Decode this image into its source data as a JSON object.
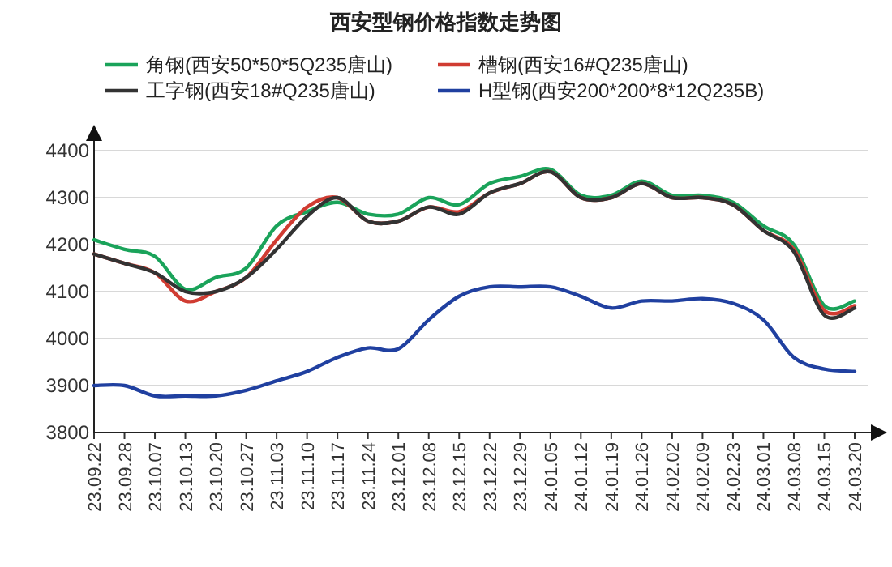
{
  "chart_data": {
    "type": "line",
    "title": "西安型钢价格指数走势图",
    "legend": "top",
    "grid": "y",
    "ylim": [
      3800,
      4400
    ],
    "yticks": [
      3800,
      3900,
      4000,
      4100,
      4200,
      4300,
      4400
    ],
    "categories": [
      "23.09.22",
      "23.09.28",
      "23.10.07",
      "23.10.13",
      "23.10.20",
      "23.10.27",
      "23.11.03",
      "23.11.10",
      "23.11.17",
      "23.11.24",
      "23.12.01",
      "23.12.08",
      "23.12.15",
      "23.12.22",
      "23.12.29",
      "24.01.05",
      "24.01.12",
      "24.01.19",
      "24.01.26",
      "24.02.02",
      "24.02.09",
      "24.02.23",
      "24.03.01",
      "24.03.08",
      "24.03.15",
      "24.03.20"
    ],
    "series": [
      {
        "name": "角钢(西安50*50*5Q235唐山)",
        "color": "#1aa35a",
        "values": [
          4210,
          4190,
          4175,
          4105,
          4130,
          4150,
          4240,
          4270,
          4290,
          4265,
          4265,
          4300,
          4285,
          4330,
          4345,
          4360,
          4305,
          4305,
          4335,
          4305,
          4305,
          4290,
          4240,
          4200,
          4070,
          4080
        ]
      },
      {
        "name": "槽钢(西安16#Q235唐山)",
        "color": "#d03c32",
        "values": [
          4180,
          4160,
          4140,
          4080,
          4100,
          4130,
          4210,
          4280,
          4300,
          4250,
          4250,
          4280,
          4270,
          4310,
          4330,
          4355,
          4300,
          4300,
          4330,
          4300,
          4300,
          4285,
          4230,
          4190,
          4060,
          4070
        ]
      },
      {
        "name": "工字钢(西安18#Q235唐山)",
        "color": "#333333",
        "values": [
          4180,
          4160,
          4140,
          4100,
          4100,
          4130,
          4190,
          4260,
          4300,
          4250,
          4250,
          4280,
          4265,
          4310,
          4330,
          4355,
          4300,
          4300,
          4330,
          4300,
          4300,
          4285,
          4230,
          4185,
          4050,
          4065
        ]
      },
      {
        "name": "H型钢(西安200*200*8*12Q235B)",
        "color": "#2040a0",
        "values": [
          3900,
          3900,
          3878,
          3878,
          3878,
          3890,
          3910,
          3930,
          3960,
          3980,
          3978,
          4040,
          4090,
          4110,
          4110,
          4110,
          4090,
          4065,
          4080,
          4080,
          4085,
          4075,
          4040,
          3960,
          3935,
          3930
        ]
      }
    ]
  }
}
